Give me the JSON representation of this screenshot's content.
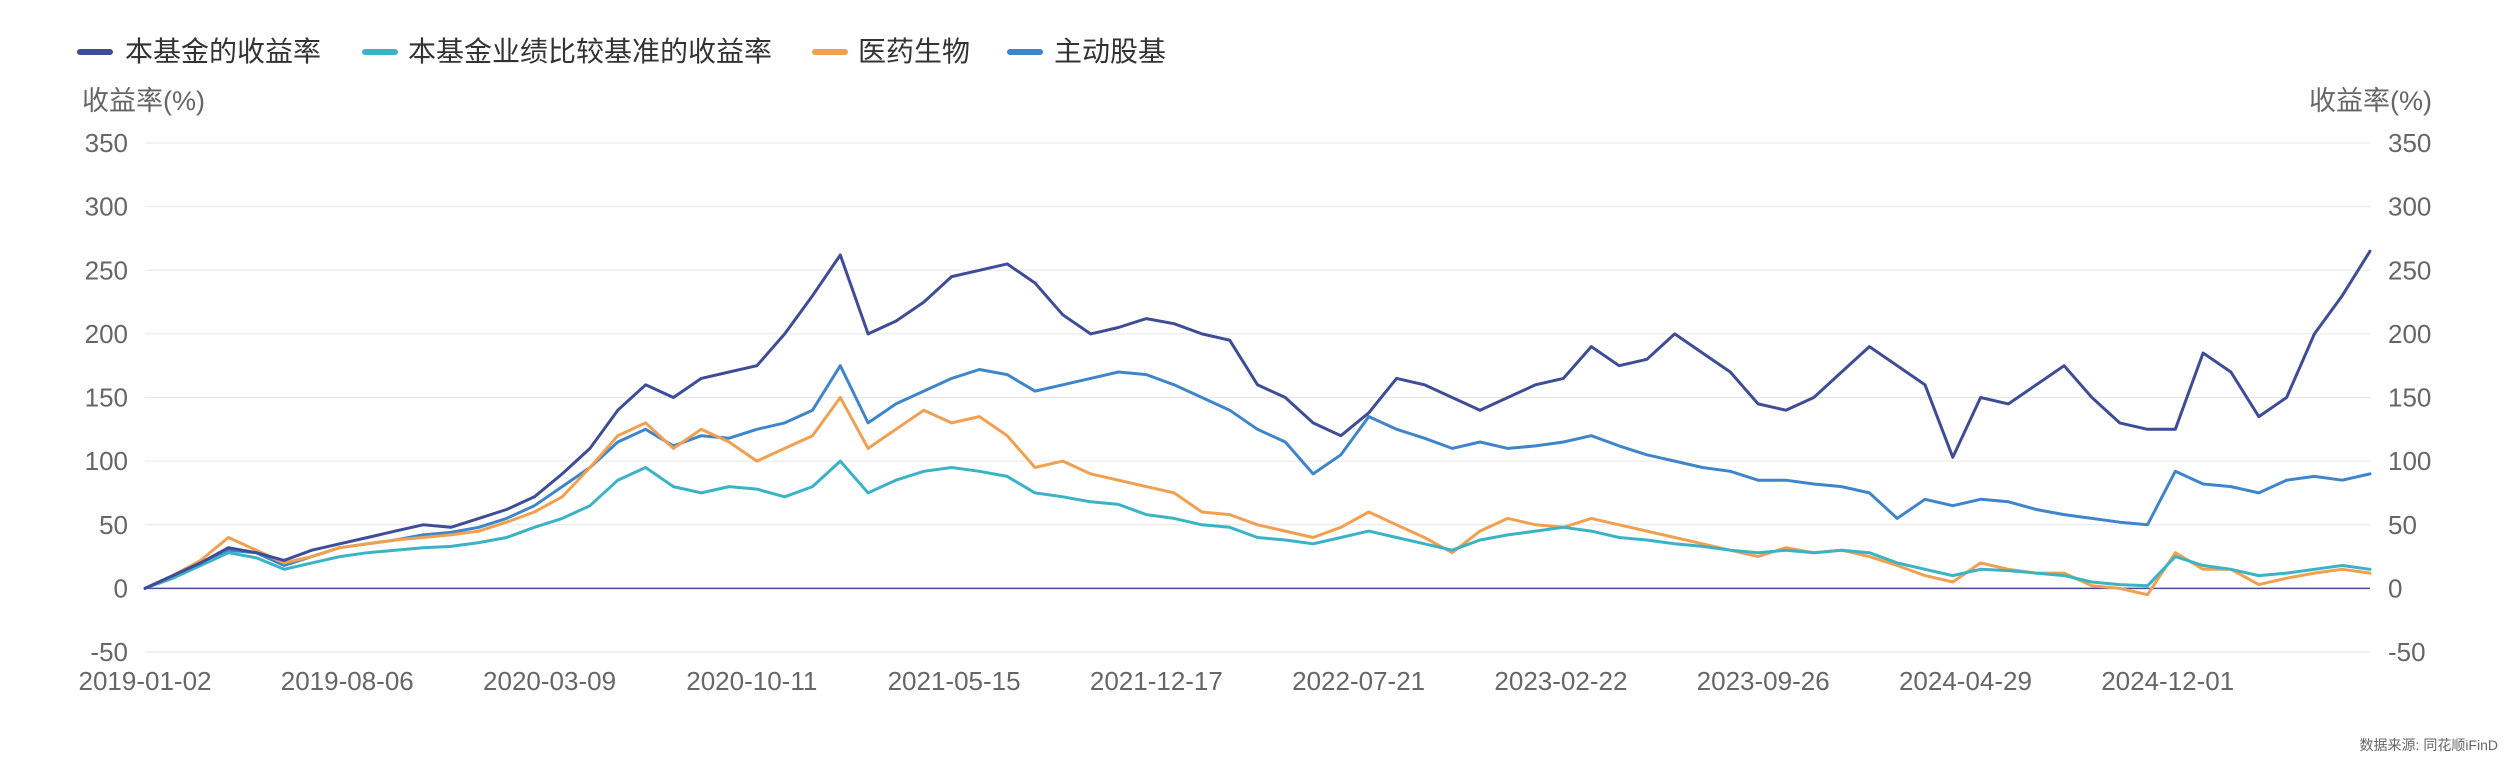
{
  "chart_data": {
    "type": "line",
    "title": "",
    "ylabel_left": "收益率(%)",
    "ylabel_right": "收益率(%)",
    "ylim": [
      -50,
      350
    ],
    "yticks": [
      -50,
      0,
      50,
      100,
      150,
      200,
      250,
      300,
      350
    ],
    "xticks": [
      "2019-01-02",
      "2019-08-06",
      "2020-03-09",
      "2020-10-11",
      "2021-05-15",
      "2021-12-17",
      "2022-07-21",
      "2023-02-22",
      "2023-09-26",
      "2024-04-29",
      "2024-12-01"
    ],
    "grid": true,
    "legend_position": "top-left",
    "source": "数据来源: 同花顺iFinD",
    "x_count": 81,
    "series": [
      {
        "name": "本基金的收益率",
        "color": "#3f4c96",
        "values": [
          0,
          10,
          20,
          32,
          28,
          22,
          30,
          35,
          40,
          45,
          50,
          48,
          55,
          62,
          72,
          90,
          110,
          140,
          160,
          150,
          165,
          170,
          175,
          200,
          230,
          262,
          200,
          210,
          225,
          245,
          250,
          255,
          240,
          215,
          200,
          205,
          212,
          208,
          200,
          195,
          160,
          150,
          130,
          120,
          138,
          165,
          160,
          150,
          140,
          150,
          160,
          165,
          190,
          175,
          180,
          200,
          185,
          170,
          145,
          140,
          150,
          170,
          190,
          175,
          160,
          103,
          150,
          145,
          160,
          175,
          150,
          130,
          125,
          125,
          185,
          170,
          135,
          150,
          200,
          230,
          265
        ]
      },
      {
        "name": "本基金业绩比较基准的收益率",
        "color": "#3ab3c6",
        "values": [
          0,
          8,
          18,
          28,
          24,
          15,
          20,
          25,
          28,
          30,
          32,
          33,
          36,
          40,
          48,
          55,
          65,
          85,
          95,
          80,
          75,
          80,
          78,
          72,
          80,
          100,
          75,
          85,
          92,
          95,
          92,
          88,
          75,
          72,
          68,
          66,
          58,
          55,
          50,
          48,
          40,
          38,
          35,
          40,
          45,
          40,
          35,
          30,
          38,
          42,
          45,
          48,
          45,
          40,
          38,
          35,
          33,
          30,
          28,
          30,
          28,
          30,
          28,
          20,
          15,
          10,
          15,
          14,
          12,
          10,
          5,
          3,
          2,
          25,
          18,
          15,
          10,
          12,
          15,
          18,
          15
        ]
      },
      {
        "name": "医药生物",
        "color": "#f0a050",
        "values": [
          0,
          10,
          22,
          40,
          30,
          20,
          25,
          32,
          35,
          38,
          40,
          42,
          45,
          52,
          60,
          72,
          95,
          120,
          130,
          110,
          125,
          115,
          100,
          110,
          120,
          150,
          110,
          125,
          140,
          130,
          135,
          120,
          95,
          100,
          90,
          85,
          80,
          75,
          60,
          58,
          50,
          45,
          40,
          48,
          60,
          50,
          40,
          28,
          45,
          55,
          50,
          48,
          55,
          50,
          45,
          40,
          35,
          30,
          25,
          32,
          28,
          30,
          25,
          18,
          10,
          5,
          20,
          15,
          12,
          12,
          2,
          0,
          -5,
          28,
          15,
          15,
          3,
          8,
          12,
          15,
          12
        ]
      },
      {
        "name": "主动股基",
        "color": "#3f85cc",
        "values": [
          0,
          10,
          20,
          30,
          28,
          18,
          25,
          32,
          35,
          38,
          42,
          44,
          48,
          55,
          65,
          80,
          95,
          115,
          125,
          112,
          120,
          118,
          125,
          130,
          140,
          175,
          130,
          145,
          155,
          165,
          172,
          168,
          155,
          160,
          165,
          170,
          168,
          160,
          150,
          140,
          125,
          115,
          90,
          105,
          135,
          125,
          118,
          110,
          115,
          110,
          112,
          115,
          120,
          112,
          105,
          100,
          95,
          92,
          85,
          85,
          82,
          80,
          75,
          55,
          70,
          65,
          70,
          68,
          62,
          58,
          55,
          52,
          50,
          92,
          82,
          80,
          75,
          85,
          88,
          85,
          90
        ]
      }
    ]
  }
}
